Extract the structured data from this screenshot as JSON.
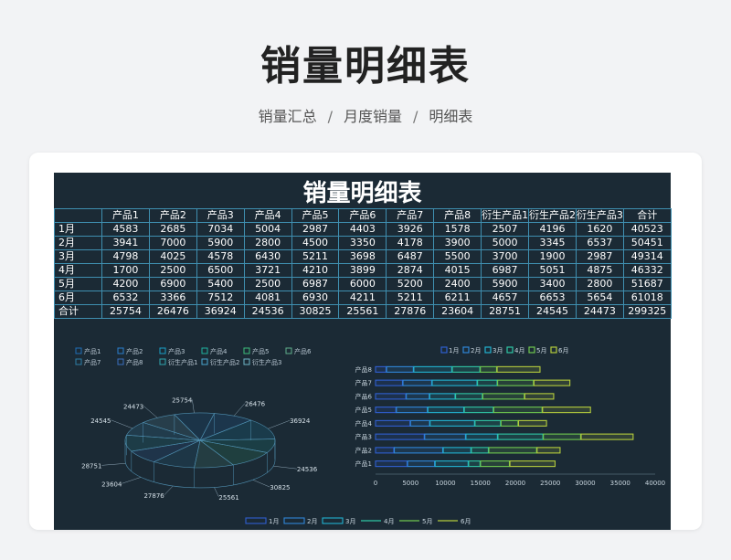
{
  "page": {
    "title": "销量明细表",
    "breadcrumb": [
      "销量汇总",
      "月度销量",
      "明细表"
    ],
    "breadcrumb_sep": "/"
  },
  "sheet": {
    "title": "销量明细表",
    "headers": [
      "",
      "产品1",
      "产品2",
      "产品3",
      "产品4",
      "产品5",
      "产品6",
      "产品7",
      "产品8",
      "衍生产品1",
      "衍生产品2",
      "衍生产品3",
      "合计"
    ],
    "rows": [
      [
        "1月",
        "4583",
        "2685",
        "7034",
        "5004",
        "2987",
        "4403",
        "3926",
        "1578",
        "2507",
        "4196",
        "1620",
        "40523"
      ],
      [
        "2月",
        "3941",
        "7000",
        "5900",
        "2800",
        "4500",
        "3350",
        "4178",
        "3900",
        "5000",
        "3345",
        "6537",
        "50451"
      ],
      [
        "3月",
        "4798",
        "4025",
        "4578",
        "6430",
        "5211",
        "3698",
        "6487",
        "5500",
        "3700",
        "1900",
        "2987",
        "49314"
      ],
      [
        "4月",
        "1700",
        "2500",
        "6500",
        "3721",
        "4210",
        "3899",
        "2874",
        "4015",
        "6987",
        "5051",
        "4875",
        "46332"
      ],
      [
        "5月",
        "4200",
        "6900",
        "5400",
        "2500",
        "6987",
        "6000",
        "5200",
        "2400",
        "5900",
        "3400",
        "2800",
        "51687"
      ],
      [
        "6月",
        "6532",
        "3366",
        "7512",
        "4081",
        "6930",
        "4211",
        "5211",
        "6211",
        "4657",
        "6653",
        "5654",
        "61018"
      ],
      [
        "合计",
        "25754",
        "26476",
        "36924",
        "24536",
        "30825",
        "25561",
        "27876",
        "23604",
        "28751",
        "24545",
        "24473",
        "299325"
      ]
    ]
  },
  "chart_data": [
    {
      "type": "pie",
      "legend": [
        "产品1",
        "产品2",
        "产品3",
        "产品4",
        "产品5",
        "产品6",
        "产品7",
        "产品8",
        "衍生产品1",
        "衍生产品2",
        "衍生产品3"
      ],
      "legend_placement": "top",
      "values": [
        25754,
        26476,
        36924,
        24536,
        30825,
        25561,
        27876,
        23604,
        28751,
        24545,
        24473
      ],
      "labels": [
        "25754",
        "26476",
        "36924",
        "24536",
        "30825",
        "25561",
        "27876",
        "23604",
        "28751",
        "24545",
        "24473"
      ]
    },
    {
      "type": "bar",
      "orientation": "horizontal",
      "stacked": true,
      "categories": [
        "产品1",
        "产品2",
        "产品3",
        "产品4",
        "产品5",
        "产品6",
        "产品7",
        "产品8"
      ],
      "series": [
        {
          "name": "1月",
          "values": [
            4583,
            2685,
            7034,
            5004,
            2987,
            4403,
            3926,
            1578
          ]
        },
        {
          "name": "2月",
          "values": [
            3941,
            7000,
            5900,
            2800,
            4500,
            3350,
            4178,
            3900
          ]
        },
        {
          "name": "3月",
          "values": [
            4798,
            4025,
            4578,
            6430,
            5211,
            3698,
            6487,
            5500
          ]
        },
        {
          "name": "4月",
          "values": [
            1700,
            2500,
            6500,
            3721,
            4210,
            3899,
            2874,
            4015
          ]
        },
        {
          "name": "5月",
          "values": [
            4200,
            6900,
            5400,
            2500,
            6987,
            6000,
            5200,
            2400
          ]
        },
        {
          "name": "6月",
          "values": [
            6532,
            3366,
            7512,
            4081,
            6930,
            4211,
            5211,
            6211
          ]
        }
      ],
      "xlim": [
        0,
        40000
      ],
      "xticks": [
        "0",
        "5000",
        "10000",
        "15000",
        "20000",
        "25000",
        "30000",
        "35000",
        "40000"
      ],
      "legend_placement": "top",
      "colors": [
        "#2f5fd0",
        "#2f86d8",
        "#22b2d0",
        "#2fc6a5",
        "#6fc84f",
        "#b4cc3c"
      ]
    },
    {
      "type": "legend",
      "entries": [
        "1月",
        "2月",
        "3月",
        "4月",
        "5月",
        "6月"
      ],
      "markers": [
        "rect",
        "rect",
        "rect",
        "line",
        "line",
        "line"
      ],
      "colors": [
        "#2f5fd0",
        "#2f86d8",
        "#22b2d0",
        "#2fc6a5",
        "#6fc84f",
        "#b4cc3c"
      ]
    }
  ]
}
